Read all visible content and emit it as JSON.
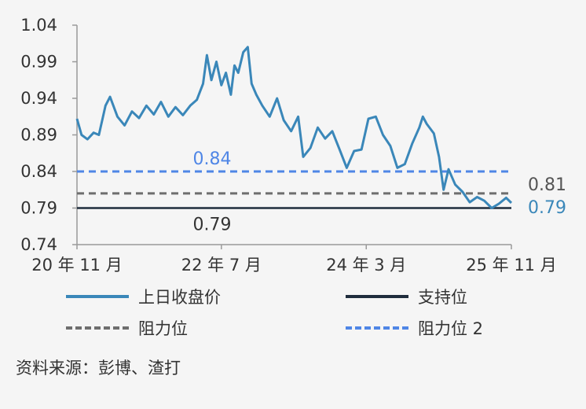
{
  "chart_data": {
    "type": "line",
    "x_ticks": [
      "20 年 11 月",
      "22 年 7 月",
      "24 年 3 月",
      "25 年 11 月"
    ],
    "y_ticks": [
      "1.04",
      "0.99",
      "0.94",
      "0.89",
      "0.84",
      "0.79",
      "0.74"
    ],
    "ylim": [
      0.74,
      1.04
    ],
    "xlim": [
      "2020-11",
      "2025-11"
    ],
    "grid": false,
    "legend_placement": "bottom",
    "series": [
      {
        "name": "上日收盘价",
        "color": "#3a87b9",
        "points": [
          [
            "2020-11-01",
            0.912
          ],
          [
            "2020-11-20",
            0.89
          ],
          [
            "2020-12-15",
            0.884
          ],
          [
            "2021-01-10",
            0.893
          ],
          [
            "2021-02-01",
            0.89
          ],
          [
            "2021-03-01",
            0.93
          ],
          [
            "2021-03-20",
            0.942
          ],
          [
            "2021-04-20",
            0.915
          ],
          [
            "2021-05-20",
            0.903
          ],
          [
            "2021-06-20",
            0.922
          ],
          [
            "2021-07-20",
            0.913
          ],
          [
            "2021-08-20",
            0.93
          ],
          [
            "2021-09-20",
            0.918
          ],
          [
            "2021-10-20",
            0.935
          ],
          [
            "2021-11-20",
            0.915
          ],
          [
            "2021-12-20",
            0.928
          ],
          [
            "2022-01-20",
            0.917
          ],
          [
            "2022-02-20",
            0.93
          ],
          [
            "2022-03-20",
            0.938
          ],
          [
            "2022-04-15",
            0.96
          ],
          [
            "2022-05-01",
            0.999
          ],
          [
            "2022-05-20",
            0.965
          ],
          [
            "2022-06-10",
            0.99
          ],
          [
            "2022-07-01",
            0.958
          ],
          [
            "2022-07-20",
            0.975
          ],
          [
            "2022-08-10",
            0.945
          ],
          [
            "2022-08-25",
            0.985
          ],
          [
            "2022-09-10",
            0.975
          ],
          [
            "2022-10-01",
            1.003
          ],
          [
            "2022-10-20",
            1.01
          ],
          [
            "2022-11-05",
            0.96
          ],
          [
            "2022-11-25",
            0.945
          ],
          [
            "2022-12-20",
            0.93
          ],
          [
            "2023-01-20",
            0.915
          ],
          [
            "2023-02-20",
            0.94
          ],
          [
            "2023-03-20",
            0.91
          ],
          [
            "2023-04-20",
            0.895
          ],
          [
            "2023-05-20",
            0.915
          ],
          [
            "2023-06-10",
            0.86
          ],
          [
            "2023-07-10",
            0.872
          ],
          [
            "2023-08-10",
            0.9
          ],
          [
            "2023-09-10",
            0.885
          ],
          [
            "2023-10-10",
            0.895
          ],
          [
            "2023-11-10",
            0.87
          ],
          [
            "2023-12-10",
            0.845
          ],
          [
            "2024-01-10",
            0.868
          ],
          [
            "2024-02-10",
            0.87
          ],
          [
            "2024-03-10",
            0.912
          ],
          [
            "2024-04-10",
            0.915
          ],
          [
            "2024-05-10",
            0.89
          ],
          [
            "2024-06-10",
            0.875
          ],
          [
            "2024-07-10",
            0.845
          ],
          [
            "2024-08-10",
            0.85
          ],
          [
            "2024-09-10",
            0.878
          ],
          [
            "2024-10-10",
            0.9
          ],
          [
            "2024-10-25",
            0.915
          ],
          [
            "2024-11-10",
            0.905
          ],
          [
            "2024-12-10",
            0.892
          ],
          [
            "2025-01-01",
            0.86
          ],
          [
            "2025-01-20",
            0.815
          ],
          [
            "2025-02-10",
            0.843
          ],
          [
            "2025-03-10",
            0.822
          ],
          [
            "2025-04-10",
            0.812
          ],
          [
            "2025-05-10",
            0.798
          ],
          [
            "2025-06-10",
            0.805
          ],
          [
            "2025-07-10",
            0.8
          ],
          [
            "2025-08-10",
            0.79
          ],
          [
            "2025-09-10",
            0.796
          ],
          [
            "2025-10-10",
            0.804
          ],
          [
            "2025-11-01",
            0.797
          ]
        ]
      }
    ],
    "levels": [
      {
        "name": "支持位",
        "value": 0.79,
        "label": "0.79",
        "color": "#1f2d3d",
        "style": "solid"
      },
      {
        "name": "阻力位",
        "value": 0.81,
        "label": "0.81",
        "color": "#6e6e6e",
        "style": "dashed"
      },
      {
        "name": "阻力位 2",
        "value": 0.84,
        "label": "0.84",
        "color": "#4f86e6",
        "style": "dashed"
      }
    ],
    "annotations": [
      {
        "text": "0.79",
        "color": "#3a87b9"
      }
    ]
  },
  "legend": {
    "items": [
      {
        "label": "上日收盘价",
        "color": "#3a87b9"
      },
      {
        "label": "支持位",
        "color": "#1f2d3d"
      },
      {
        "label": "阻力位",
        "color": "#6e6e6e"
      },
      {
        "label": "阻力位 2",
        "color": "#4f86e6"
      }
    ]
  },
  "source": "资料来源：彭博、渣打"
}
